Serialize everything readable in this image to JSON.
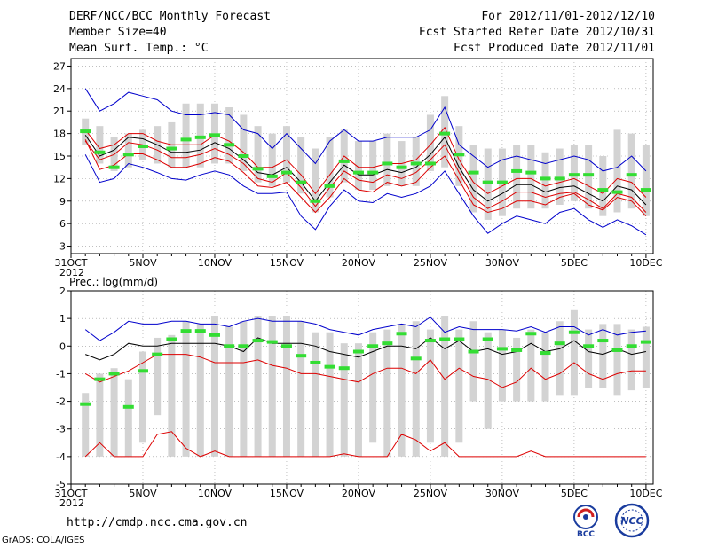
{
  "header": {
    "title": "DERF/NCC/BCC Monthly Forecast",
    "member_size": "Member Size=40",
    "variable": "Mean Surf. Temp.: °C",
    "period": "For 2012/11/01-2012/12/10",
    "started": "Fcst Started Refer Date 2012/10/31",
    "produced": "Fcst Produced Date 2012/11/01"
  },
  "footer": {
    "url": "http://cmdp.ncc.cma.gov.cn",
    "grads": "GrADS: COLA/IGES",
    "logo_bcc": "BCC",
    "logo_ncc": "NCC"
  },
  "colors": {
    "box": "#d3d3d3",
    "obs": "#33dd33",
    "mean": "#000000",
    "spread": "#dd0000",
    "extreme": "#0000cc",
    "grid": "#999999"
  },
  "chart_data": [
    {
      "type": "line",
      "title": "Mean Surf. Temp.: °C",
      "x_labels": [
        "31OCT\n2012",
        "5NOV",
        "10NOV",
        "15NOV",
        "20NOV",
        "25NOV",
        "30NOV",
        "5DEC",
        "10DEC"
      ],
      "x_label_days": [
        0,
        5,
        10,
        15,
        20,
        25,
        30,
        35,
        40
      ],
      "ylim": [
        2,
        28
      ],
      "y_ticks": [
        3,
        6,
        9,
        12,
        15,
        18,
        21,
        24,
        27
      ],
      "days": [
        1,
        2,
        3,
        4,
        5,
        6,
        7,
        8,
        9,
        10,
        11,
        12,
        13,
        14,
        15,
        16,
        17,
        18,
        19,
        20,
        21,
        22,
        23,
        24,
        25,
        26,
        27,
        28,
        29,
        30,
        31,
        32,
        33,
        34,
        35,
        36,
        37,
        38,
        39,
        40
      ],
      "box_low": [
        16.5,
        14,
        13,
        13.5,
        14.5,
        14,
        13.5,
        13.5,
        13.5,
        14,
        14,
        13,
        11.5,
        11,
        11.5,
        10,
        7.5,
        9.5,
        11.5,
        10.5,
        10.5,
        11,
        11,
        11,
        13,
        13.5,
        11,
        7.5,
        6.5,
        7,
        8,
        8,
        8,
        8.5,
        9,
        8,
        7,
        7.5,
        8,
        7
      ],
      "box_high": [
        20,
        19,
        17.5,
        18,
        18.5,
        19,
        19.5,
        22,
        22,
        22,
        21.5,
        20.5,
        19,
        18,
        19,
        17.5,
        16,
        17.5,
        18.5,
        17,
        17,
        18,
        17,
        17.5,
        20.5,
        23,
        19,
        16.5,
        16,
        16,
        16.5,
        16.5,
        15.5,
        16,
        16.5,
        16.5,
        15,
        18.5,
        18,
        16.5
      ],
      "observed": [
        18.3,
        15.5,
        13.5,
        15.2,
        16.3,
        null,
        16.0,
        17.2,
        17.5,
        17.8,
        16.5,
        15.0,
        13.3,
        12.3,
        12.8,
        11.5,
        9.0,
        11.0,
        14.3,
        12.8,
        12.8,
        14.0,
        13.5,
        14.0,
        14.0,
        18.0,
        15.2,
        12.8,
        11.5,
        11.5,
        13.0,
        12.8,
        12.0,
        12.0,
        12.5,
        12.5,
        10.5,
        10.2,
        12.5,
        10.5
      ],
      "series": [
        {
          "name": "max",
          "values": [
            24,
            21,
            22,
            23.5,
            23,
            22.5,
            21,
            20.5,
            20.5,
            20.8,
            20.5,
            18.5,
            18,
            16,
            18,
            16,
            14,
            17,
            18.5,
            17,
            17,
            17.5,
            17.5,
            17.5,
            18.5,
            21.5,
            16.5,
            15,
            13.5,
            14.5,
            15,
            14.5,
            14,
            14.5,
            15,
            14.5,
            13,
            13.5,
            15,
            13
          ]
        },
        {
          "name": "upper",
          "values": [
            18.5,
            16,
            16.5,
            18,
            18,
            17,
            16.5,
            16.5,
            16.5,
            17.8,
            17,
            15.5,
            13.5,
            13.5,
            14.5,
            12.5,
            10,
            12.5,
            15,
            13.5,
            13.5,
            14,
            14,
            14.5,
            16.5,
            18.8,
            14.5,
            11.5,
            10,
            11,
            12,
            12,
            11,
            11.5,
            12,
            11,
            10,
            12,
            11.5,
            9.5
          ]
        },
        {
          "name": "mean",
          "values": [
            17.8,
            15,
            15.8,
            17.5,
            17.3,
            16.5,
            15.5,
            15.5,
            15.8,
            16.8,
            16,
            14.5,
            12.8,
            12.5,
            13.5,
            11.5,
            9,
            11.5,
            13.8,
            12.5,
            12.5,
            13.2,
            12.8,
            13.5,
            15.2,
            17.5,
            13.5,
            10.5,
            9,
            10,
            11.2,
            11.2,
            10.2,
            10.8,
            11,
            10,
            9,
            11,
            10.5,
            8.5
          ]
        },
        {
          "name": "lower",
          "values": [
            17,
            14.5,
            15.2,
            16.8,
            16.5,
            15.8,
            14.8,
            14.8,
            15.2,
            16,
            15.2,
            14,
            12,
            11.5,
            12.8,
            10.8,
            8.3,
            10.8,
            13,
            11.8,
            11.5,
            12.5,
            12,
            12.8,
            14.5,
            16.5,
            12.8,
            9.5,
            8,
            9,
            10.2,
            10.2,
            9.5,
            10,
            10.2,
            9.2,
            8,
            10,
            9.5,
            7.5
          ]
        },
        {
          "name": "lower_spread",
          "values": [
            17.2,
            13.2,
            13.8,
            15.3,
            15.3,
            14.5,
            13.5,
            13.5,
            14,
            14.8,
            14.3,
            12.8,
            11,
            10.8,
            11.5,
            9.5,
            7.5,
            9.5,
            12,
            10.5,
            10.2,
            11.5,
            11,
            11.5,
            13.5,
            15,
            11.8,
            8.5,
            7.5,
            8,
            9,
            9,
            8.5,
            9.5,
            10,
            8.5,
            7.8,
            9.5,
            9,
            7
          ]
        },
        {
          "name": "min",
          "values": [
            15.2,
            11.5,
            12,
            14,
            13.5,
            12.8,
            12,
            11.8,
            12.5,
            13,
            12.5,
            11,
            10,
            10,
            10.2,
            7,
            5.2,
            8.3,
            10.5,
            9,
            8.8,
            10,
            9.5,
            10,
            11,
            13,
            10,
            7,
            4.7,
            6,
            7,
            6.5,
            6,
            7.5,
            8,
            6.5,
            5.5,
            6.5,
            5.7,
            4.5
          ]
        }
      ]
    },
    {
      "type": "line",
      "title": "Prec.: log(mm/d)",
      "x_labels": [
        "31OCT\n2012",
        "5NOV",
        "10NOV",
        "15NOV",
        "20NOV",
        "25NOV",
        "30NOV",
        "5DEC",
        "10DEC"
      ],
      "x_label_days": [
        0,
        5,
        10,
        15,
        20,
        25,
        30,
        35,
        40
      ],
      "ylim": [
        -5,
        2
      ],
      "y_ticks": [
        -5,
        -4,
        -3,
        -2,
        -1,
        0,
        1,
        2
      ],
      "days": [
        1,
        2,
        3,
        4,
        5,
        6,
        7,
        8,
        9,
        10,
        11,
        12,
        13,
        14,
        15,
        16,
        17,
        18,
        19,
        20,
        21,
        22,
        23,
        24,
        25,
        26,
        27,
        28,
        29,
        30,
        31,
        32,
        33,
        34,
        35,
        36,
        37,
        38,
        39,
        40
      ],
      "box_low": [
        -4,
        -4,
        -4,
        -4,
        -3.5,
        -2.5,
        -4,
        -4,
        -4,
        -4,
        -4,
        -4,
        -4,
        -4,
        -4,
        -4,
        -4,
        -4,
        -4,
        -4,
        -3.5,
        -4,
        -4,
        -4,
        -3.5,
        -4,
        -3.5,
        -2,
        -3,
        -2,
        -2,
        -2,
        -2,
        -1.8,
        -1.8,
        -1.5,
        -1.5,
        -1.8,
        -1.6,
        -1.5
      ],
      "box_high": [
        -1.7,
        -1,
        -0.8,
        -1.2,
        -0.2,
        0.3,
        0.4,
        0.9,
        0.8,
        1.1,
        0.7,
        0.9,
        1.1,
        1.1,
        1.1,
        0.9,
        0.5,
        0.5,
        0.1,
        0.1,
        0.5,
        0.6,
        0.8,
        0.9,
        0.6,
        1.1,
        0.6,
        0.9,
        0.5,
        0.6,
        0.3,
        0.6,
        0.5,
        0.9,
        1.3,
        0.6,
        0.8,
        0.8,
        0.6,
        0.7
      ],
      "observed": [
        -2.1,
        -1.2,
        -1.0,
        -2.2,
        -0.9,
        -0.3,
        0.25,
        0.55,
        0.55,
        0.4,
        0.0,
        0.0,
        0.2,
        0.15,
        0.0,
        -0.35,
        -0.6,
        -0.75,
        -0.8,
        -0.2,
        0.0,
        0.1,
        0.45,
        -0.45,
        0.2,
        0.25,
        0.25,
        -0.2,
        0.25,
        -0.1,
        -0.15,
        0.45,
        -0.25,
        0.1,
        0.5,
        0.0,
        0.2,
        -0.15,
        0.0,
        0.15
      ],
      "series": [
        {
          "name": "max",
          "values": [
            0.6,
            0.2,
            0.5,
            0.9,
            0.8,
            0.8,
            0.9,
            0.9,
            0.8,
            0.8,
            0.7,
            0.9,
            1.0,
            0.9,
            0.9,
            0.9,
            0.8,
            0.6,
            0.5,
            0.4,
            0.6,
            0.7,
            0.8,
            0.7,
            1.05,
            0.5,
            0.7,
            0.6,
            0.6,
            0.6,
            0.55,
            0.7,
            0.5,
            0.7,
            0.7,
            0.4,
            0.6,
            0.4,
            0.5,
            0.55
          ]
        },
        {
          "name": "mean",
          "values": [
            -0.3,
            -0.5,
            -0.3,
            0.1,
            0.0,
            0.0,
            0.1,
            0.1,
            0.1,
            0.1,
            0.0,
            -0.2,
            0.3,
            0.1,
            0.1,
            0.1,
            0.0,
            -0.2,
            -0.3,
            -0.4,
            -0.2,
            0.0,
            0.0,
            -0.1,
            0.3,
            -0.1,
            0.2,
            -0.2,
            -0.1,
            -0.3,
            -0.2,
            0.1,
            -0.2,
            -0.1,
            0.2,
            -0.2,
            -0.3,
            -0.1,
            -0.3,
            -0.2
          ]
        },
        {
          "name": "lower",
          "values": [
            -1.0,
            -1.3,
            -1.1,
            -0.9,
            -0.6,
            -0.3,
            -0.3,
            -0.3,
            -0.4,
            -0.6,
            -0.6,
            -0.6,
            -0.5,
            -0.7,
            -0.8,
            -1.0,
            -1.0,
            -1.1,
            -1.2,
            -1.3,
            -1.0,
            -0.8,
            -0.8,
            -1.0,
            -0.5,
            -1.2,
            -0.8,
            -1.1,
            -1.2,
            -1.5,
            -1.3,
            -0.8,
            -1.2,
            -1.0,
            -0.6,
            -1.0,
            -1.2,
            -1.0,
            -0.9,
            -0.9
          ]
        },
        {
          "name": "min_spike",
          "values": [
            -4,
            -3.5,
            -4,
            -4,
            -4,
            -3.2,
            -3.1,
            -3.7,
            -4,
            -3.8,
            -4,
            -4,
            -4,
            -4,
            -4,
            -4,
            -4,
            -4,
            -3.9,
            -4,
            -4,
            -4,
            -3.2,
            -3.4,
            -3.8,
            -3.5,
            -4,
            -4,
            -4,
            -4,
            -4,
            -3.8,
            -4,
            -4,
            -4,
            -4,
            -4,
            -4,
            -4,
            -4
          ]
        }
      ]
    }
  ]
}
